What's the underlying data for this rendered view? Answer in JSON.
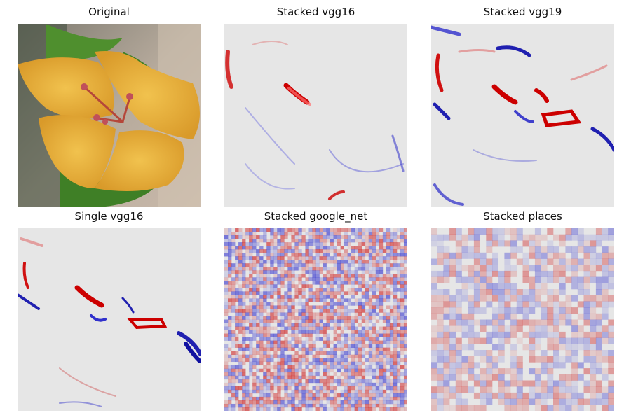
{
  "figure": {
    "panels": [
      {
        "title": "Original",
        "icon": "photo-flower-icon"
      },
      {
        "title": "Stacked vgg16",
        "icon": "saliency-map-icon"
      },
      {
        "title": "Stacked vgg19",
        "icon": "saliency-map-icon"
      },
      {
        "title": "Single vgg16",
        "icon": "saliency-map-icon"
      },
      {
        "title": "Stacked google_net",
        "icon": "saliency-map-icon"
      },
      {
        "title": "Stacked places",
        "icon": "saliency-map-icon"
      }
    ],
    "colors": {
      "positive": "#cc0000",
      "negative": "#1a1acc",
      "neutral": "#e6e6e6",
      "petal": "#e8b43a",
      "leaf": "#4f8f2e"
    }
  }
}
